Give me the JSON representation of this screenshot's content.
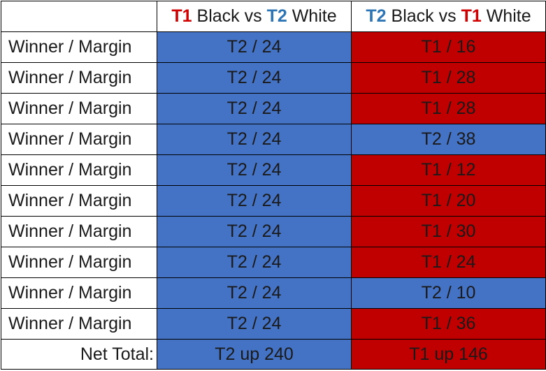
{
  "colors": {
    "t1": "#c00000",
    "t2": "#4472c4",
    "t1_text": "#d00000",
    "t2_text": "#2e75b6"
  },
  "headers": [
    {
      "a": "T1",
      "mid": " Black vs ",
      "b": "T2",
      "end": " White",
      "a_team": "t1",
      "b_team": "t2"
    },
    {
      "a": "T2",
      "mid": " Black vs ",
      "b": "T1",
      "end": " White",
      "a_team": "t2",
      "b_team": "t1"
    }
  ],
  "rows": [
    {
      "label": "Winner / Margin",
      "col1": "T2 / 24",
      "col1_team": "t2",
      "col2": "T1 / 16",
      "col2_team": "t1"
    },
    {
      "label": "Winner / Margin",
      "col1": "T2 / 24",
      "col1_team": "t2",
      "col2": "T1 / 28",
      "col2_team": "t1"
    },
    {
      "label": "Winner / Margin",
      "col1": "T2 / 24",
      "col1_team": "t2",
      "col2": "T1 / 28",
      "col2_team": "t1"
    },
    {
      "label": "Winner / Margin",
      "col1": "T2 / 24",
      "col1_team": "t2",
      "col2": "T2 / 38",
      "col2_team": "t2"
    },
    {
      "label": "Winner / Margin",
      "col1": "T2 / 24",
      "col1_team": "t2",
      "col2": "T1 / 12",
      "col2_team": "t1"
    },
    {
      "label": "Winner / Margin",
      "col1": "T2 / 24",
      "col1_team": "t2",
      "col2": "T1 / 20",
      "col2_team": "t1"
    },
    {
      "label": "Winner / Margin",
      "col1": "T2 / 24",
      "col1_team": "t2",
      "col2": "T1 / 30",
      "col2_team": "t1"
    },
    {
      "label": "Winner / Margin",
      "col1": "T2 / 24",
      "col1_team": "t2",
      "col2": "T1 / 24",
      "col2_team": "t1"
    },
    {
      "label": "Winner / Margin",
      "col1": "T2 / 24",
      "col1_team": "t2",
      "col2": "T2 / 10",
      "col2_team": "t2"
    },
    {
      "label": "Winner / Margin",
      "col1": "T2 / 24",
      "col1_team": "t2",
      "col2": "T1 / 36",
      "col2_team": "t1"
    }
  ],
  "total": {
    "label": "Net Total:",
    "col1": "T2 up 240",
    "col1_team": "t2",
    "col2": "T1 up 146",
    "col2_team": "t1"
  }
}
